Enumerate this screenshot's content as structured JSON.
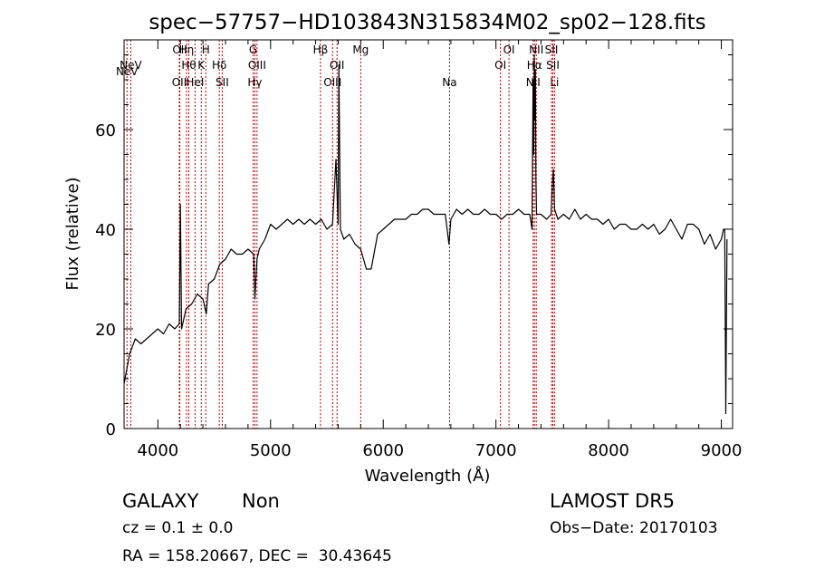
{
  "chart_data": {
    "type": "line",
    "title": "spec−57757−HD103843N315834M02_sp02−128.fits",
    "xlabel": "Wavelength (Å)",
    "ylabel": "Flux (relative)",
    "xlim": [
      3700,
      9100
    ],
    "ylim": [
      0,
      78
    ],
    "xticks": [
      4000,
      5000,
      6000,
      7000,
      8000,
      9000
    ],
    "yticks": [
      0,
      20,
      40,
      60
    ],
    "grid": false,
    "series": [
      {
        "x": [
          3700,
          3750,
          3800,
          3850,
          3900,
          3950,
          4000,
          4050,
          4100,
          4150,
          4190,
          4200,
          4210,
          4250,
          4300,
          4350,
          4400,
          4430,
          4450,
          4500,
          4550,
          4600,
          4650,
          4700,
          4750,
          4800,
          4850,
          4861,
          4880,
          4900,
          4950,
          5000,
          5050,
          5100,
          5150,
          5200,
          5250,
          5300,
          5350,
          5400,
          5450,
          5500,
          5550,
          5580,
          5600,
          5606,
          5620,
          5650,
          5700,
          5750,
          5800,
          5850,
          5893,
          5950,
          6000,
          6050,
          6100,
          6150,
          6200,
          6250,
          6300,
          6350,
          6400,
          6450,
          6500,
          6550,
          6583,
          6600,
          6650,
          6700,
          6750,
          6800,
          6850,
          6900,
          6950,
          7000,
          7050,
          7100,
          7150,
          7200,
          7250,
          7300,
          7320,
          7330,
          7335,
          7340,
          7345,
          7350,
          7355,
          7360,
          7380,
          7400,
          7450,
          7490,
          7500,
          7510,
          7520,
          7550,
          7600,
          7650,
          7700,
          7750,
          7800,
          7850,
          7900,
          7950,
          8000,
          8050,
          8100,
          8150,
          8200,
          8250,
          8300,
          8350,
          8400,
          8450,
          8500,
          8550,
          8600,
          8650,
          8700,
          8750,
          8800,
          8850,
          8900,
          8950,
          9000,
          9020,
          9030,
          9040,
          9050
        ],
        "y": [
          9,
          15,
          18,
          17,
          18,
          19,
          20,
          19,
          21,
          20,
          21,
          45,
          20,
          24,
          25,
          27,
          26,
          23,
          29,
          30,
          33,
          34,
          36,
          35,
          35,
          36,
          35,
          26,
          34,
          36,
          38,
          41,
          40,
          41,
          42,
          41,
          42,
          41,
          42,
          41,
          42,
          40,
          41,
          54,
          41,
          73,
          40,
          38,
          39,
          37,
          36,
          32,
          32,
          39,
          40,
          41,
          42,
          42,
          42,
          43,
          43,
          44,
          44,
          43,
          43,
          43,
          37,
          42,
          44,
          43,
          44,
          43,
          43,
          44,
          43,
          43,
          42,
          43,
          43,
          44,
          43,
          43,
          40,
          70,
          55,
          75,
          62,
          72,
          50,
          43,
          43,
          43,
          42,
          43,
          49,
          52,
          44,
          42,
          43,
          42,
          44,
          42,
          43,
          42,
          42,
          41,
          42,
          40,
          41,
          41,
          40,
          40,
          41,
          40,
          41,
          39,
          40,
          42,
          40,
          38,
          41,
          41,
          40,
          37,
          39,
          36,
          38,
          40,
          40,
          3,
          38
        ]
      }
    ],
    "lines": [
      {
        "name": "NeV",
        "x": 3726,
        "row": 2
      },
      {
        "name": "NeV",
        "x": 3760,
        "row": 1
      },
      {
        "name": "OII",
        "x": 4190,
        "row": 3
      },
      {
        "name": "OII",
        "x": 4195,
        "row": 0
      },
      {
        "name": "Hη",
        "x": 4254,
        "row": 0
      },
      {
        "name": "Hθ",
        "x": 4275,
        "row": 1
      },
      {
        "name": "HeI",
        "x": 4330,
        "row": 3
      },
      {
        "name": "K",
        "x": 4385,
        "row": 1
      },
      {
        "name": "H",
        "x": 4425,
        "row": 0
      },
      {
        "name": "Hδ",
        "x": 4545,
        "row": 1
      },
      {
        "name": "SII",
        "x": 4571,
        "row": 3
      },
      {
        "name": "G",
        "x": 4845,
        "row": 0
      },
      {
        "name": "Hγ",
        "x": 4861,
        "row": 3
      },
      {
        "name": "OIII",
        "x": 4880,
        "row": 1
      },
      {
        "name": "Hβ",
        "x": 5443,
        "row": 0
      },
      {
        "name": "OIII",
        "x": 5550,
        "row": 3
      },
      {
        "name": "OII",
        "x": 5590,
        "row": 1
      },
      {
        "name": "Mg",
        "x": 5800,
        "row": 0
      },
      {
        "name": "Na",
        "x": 6588,
        "row": 3
      },
      {
        "name": "OI",
        "x": 7040,
        "row": 1
      },
      {
        "name": "OI",
        "x": 7116,
        "row": 0
      },
      {
        "name": "NII",
        "x": 7330,
        "row": 3
      },
      {
        "name": "Hα",
        "x": 7342,
        "row": 1
      },
      {
        "name": "NII",
        "x": 7358,
        "row": 0
      },
      {
        "name": "SII",
        "x": 7493,
        "row": 0
      },
      {
        "name": "SII",
        "x": 7505,
        "row": 1
      },
      {
        "name": "Li",
        "x": 7520,
        "row": 3
      }
    ],
    "colors": {
      "spectrum": "#000000",
      "line_marker": "#c00000",
      "axes": "#000000"
    }
  },
  "info": {
    "class": "GALAXY",
    "subclass": "Non",
    "cz": "cz = 0.1 ± 0.0",
    "coords": "RA = 158.20667, DEC =  30.43645",
    "survey": "LAMOST DR5",
    "obs_date": "Obs−Date: 20170103"
  }
}
